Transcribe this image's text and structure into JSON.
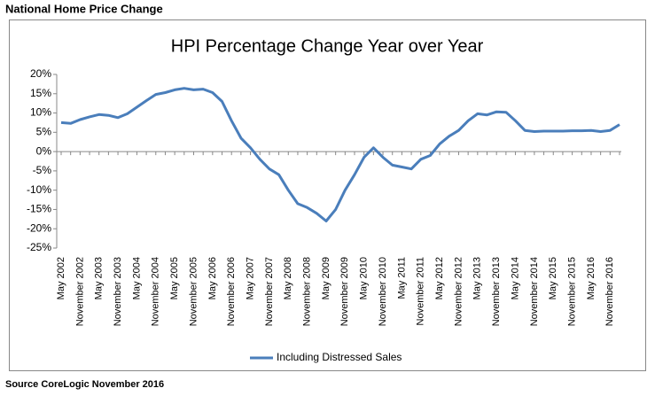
{
  "header": "National Home Price Change",
  "footer": "Source CoreLogic November 2016",
  "chart_data": {
    "type": "line",
    "title": "HPI Percentage Change Year over Year",
    "categories": [
      "May 2002",
      null,
      "November 2002",
      null,
      "May 2003",
      null,
      "November 2003",
      null,
      "May 2004",
      null,
      "November 2004",
      null,
      "May 2005",
      null,
      "November 2005",
      null,
      "May 2006",
      null,
      "November 2006",
      null,
      "May 2007",
      null,
      "November 2007",
      null,
      "May 2008",
      null,
      "November 2008",
      null,
      "May 2009",
      null,
      "November 2009",
      null,
      "May 2010",
      null,
      "November 2010",
      null,
      "May 2011",
      null,
      "November 2011",
      null,
      "May 2012",
      null,
      "November 2012",
      null,
      "May 2013",
      null,
      "November 2013",
      null,
      "May 2014",
      null,
      "November 2014",
      null,
      "May 2015",
      null,
      "November 2015",
      null,
      "May 2016",
      null,
      "November 2016",
      null
    ],
    "series": [
      {
        "name": "Including Distressed Sales",
        "color": "#4a7ebb",
        "values": [
          7.5,
          7.3,
          8.3,
          9,
          9.6,
          9.4,
          8.8,
          9.8,
          11.5,
          13.2,
          14.8,
          15.3,
          16,
          16.4,
          16,
          16.2,
          15.3,
          13,
          8,
          3.5,
          1,
          -2,
          -4.5,
          -6,
          -10,
          -13.5,
          -14.5,
          -16,
          -18,
          -15,
          -10,
          -6,
          -1.5,
          1,
          -1.5,
          -3.5,
          -4,
          -4.5,
          -2,
          -1,
          2,
          4,
          5.5,
          8,
          9.8,
          9.5,
          10.3,
          10.2,
          8,
          5.5,
          5.2,
          5.3,
          5.3,
          5.3,
          5.4,
          5.4,
          5.5,
          5.2,
          5.5,
          7
        ]
      }
    ],
    "ylim": [
      -25,
      20
    ],
    "yticks": [
      {
        "value": -25,
        "label": "-25%"
      },
      {
        "value": -20,
        "label": "-20%"
      },
      {
        "value": -15,
        "label": "-15%"
      },
      {
        "value": -10,
        "label": "-10%"
      },
      {
        "value": -5,
        "label": "-5%"
      },
      {
        "value": 0,
        "label": "0%"
      },
      {
        "value": 5,
        "label": "5%"
      },
      {
        "value": 10,
        "label": "10%"
      },
      {
        "value": 15,
        "label": "15%"
      },
      {
        "value": 20,
        "label": "20%"
      }
    ],
    "grid": false,
    "legend": "bottom"
  }
}
